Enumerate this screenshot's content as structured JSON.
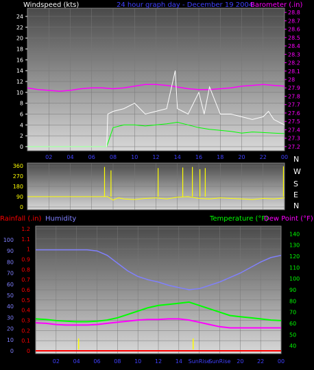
{
  "colors": {
    "white": "#ffffff",
    "magenta": "#ff00ff",
    "blue": "#4040ff",
    "yellow": "#ffff00",
    "green": "#00ff00",
    "red": "#ff0000",
    "humidity": "#8080ff"
  },
  "chart_data": [
    {
      "type": "line",
      "name": "wind-baro",
      "title": "24 hour graph day - December 19 2004",
      "left_label": "Windspeed (kts)",
      "right_label": "Barometer (.in)",
      "left_ticks": [
        "0",
        "2",
        "4",
        "6",
        "8",
        "10",
        "12",
        "14",
        "16",
        "18",
        "20",
        "22",
        "24"
      ],
      "right_ticks": [
        "27.2",
        "27.3",
        "27.4",
        "27.5",
        "27.6",
        "27.7",
        "27.8",
        "27.9",
        "28",
        "28.1",
        "28.2",
        "28.3",
        "28.4",
        "28.5",
        "28.6",
        "28.7",
        "28.8"
      ],
      "x_ticks": [
        "02",
        "04",
        "06",
        "08",
        "10",
        "12",
        "14",
        "16",
        "18",
        "20",
        "22",
        "00"
      ],
      "ylim_left": [
        0,
        25
      ],
      "ylim_right": [
        27.15,
        28.85
      ],
      "series": [
        {
          "key": "barometer",
          "axis": "right",
          "x": [
            0,
            1,
            2,
            3,
            4,
            5,
            6,
            7,
            8,
            9,
            10,
            11,
            12,
            13,
            14,
            15,
            16,
            17,
            18,
            19,
            20,
            21,
            22,
            23,
            24
          ],
          "values": [
            27.9,
            27.88,
            27.87,
            27.86,
            27.87,
            27.89,
            27.9,
            27.9,
            27.89,
            27.9,
            27.92,
            27.94,
            27.94,
            27.93,
            27.91,
            27.89,
            27.88,
            27.88,
            27.89,
            27.9,
            27.92,
            27.93,
            27.94,
            27.93,
            27.92
          ]
        },
        {
          "key": "wind_avg",
          "axis": "left",
          "x": [
            0,
            1,
            2,
            3,
            4,
            5,
            6,
            7,
            7.4,
            8,
            9,
            10,
            11,
            12,
            13,
            14,
            15,
            16,
            17,
            18,
            19,
            20,
            21,
            22,
            23,
            24
          ],
          "values": [
            0,
            0,
            0,
            0,
            0,
            0,
            0,
            0,
            0,
            3.5,
            4,
            4,
            3.8,
            4,
            4.2,
            4.5,
            4,
            3.5,
            3.2,
            3,
            2.8,
            2.5,
            2.7,
            2.6,
            2.5,
            2.4
          ]
        },
        {
          "key": "wind_gust",
          "axis": "left",
          "x": [
            0,
            7.4,
            7.5,
            8,
            9,
            10,
            11,
            12,
            13,
            13.8,
            14,
            14.5,
            15,
            16,
            16.5,
            17,
            18,
            19,
            20,
            21,
            22,
            22.5,
            23,
            24
          ],
          "values": [
            0,
            0,
            6,
            6.5,
            7,
            8,
            6,
            6.5,
            7,
            14,
            7,
            6.5,
            6,
            10,
            6,
            11,
            6,
            6,
            5.5,
            5,
            5.5,
            6.5,
            5,
            4
          ]
        }
      ]
    },
    {
      "type": "scatter",
      "name": "wind-direction",
      "left_ticks": [
        "0",
        "90",
        "180",
        "270",
        "360"
      ],
      "right_ticks": [
        "N",
        "W",
        "S",
        "E",
        "N"
      ],
      "x_ticks": [
        "02",
        "04",
        "06",
        "08",
        "10",
        "12",
        "14",
        "16",
        "18",
        "20",
        "22",
        "00"
      ],
      "ylim": [
        0,
        360
      ],
      "series": [
        {
          "key": "direction",
          "x": [
            0,
            1,
            2,
            3,
            4,
            5,
            6,
            7,
            7.5,
            8,
            8.5,
            9,
            10,
            11,
            12,
            13,
            14,
            15,
            16,
            17,
            18,
            19,
            20,
            21,
            22,
            23,
            24
          ],
          "values": [
            90,
            90,
            90,
            90,
            90,
            90,
            90,
            90,
            90,
            60,
            80,
            70,
            65,
            75,
            80,
            70,
            85,
            90,
            75,
            70,
            80,
            75,
            70,
            65,
            75,
            70,
            80
          ]
        },
        {
          "key": "spikes",
          "x": [
            7.2,
            7.8,
            12.2,
            14.5,
            15.4,
            16.1,
            16.6,
            23.9
          ],
          "values": [
            350,
            320,
            340,
            345,
            350,
            330,
            340,
            355
          ]
        }
      ]
    },
    {
      "type": "line",
      "name": "temp-humidity",
      "left_label_1": "Rainfall (.in)",
      "left_label_2": "Humidity",
      "right_label_1": "Temperature (°F)",
      "right_label_2": "Dew Point (°F)",
      "rain_ticks": [
        "0",
        "0.1",
        "0.2",
        "0.3",
        "0.4",
        "0.5",
        "0.6",
        "0.7",
        "0.8",
        "0.9",
        "1",
        "1.1",
        "1.2"
      ],
      "humidity_ticks": [
        "0",
        "10",
        "20",
        "30",
        "40",
        "50",
        "60",
        "70",
        "80",
        "90",
        "100"
      ],
      "temp_ticks": [
        "40",
        "50",
        "60",
        "70",
        "80",
        "90",
        "100",
        "110",
        "120",
        "130",
        "140"
      ],
      "x_ticks": [
        "02",
        "04",
        "06",
        "08",
        "10",
        "12",
        "14",
        "SunRise",
        "SunRise",
        "20",
        "22",
        "00"
      ],
      "ylim_humidity": [
        0,
        100
      ],
      "ylim_temp": [
        33,
        147
      ],
      "markers": [
        {
          "label": "SunRise",
          "x": 4.2
        },
        {
          "label": "SunRise",
          "x": 15.4
        }
      ],
      "series": [
        {
          "key": "humidity",
          "axis": "humidity",
          "x": [
            0,
            1,
            2,
            3,
            4,
            5,
            6,
            7,
            8,
            9,
            10,
            11,
            12,
            13,
            14,
            15,
            16,
            17,
            18,
            19,
            20,
            21,
            22,
            23,
            24
          ],
          "values": [
            91,
            91,
            91,
            91,
            91,
            91,
            90,
            86,
            79,
            72,
            67,
            64,
            62,
            59,
            57,
            55,
            56,
            59,
            62,
            66,
            70,
            75,
            80,
            84,
            86
          ]
        },
        {
          "key": "temperature",
          "axis": "temp",
          "x": [
            0,
            1,
            2,
            3,
            4,
            5,
            6,
            7,
            8,
            9,
            10,
            11,
            12,
            13,
            14,
            15,
            16,
            17,
            18,
            19,
            20,
            21,
            22,
            23,
            24
          ],
          "values": [
            64,
            63.5,
            62.5,
            62,
            61.5,
            61.5,
            62,
            63,
            65,
            68,
            71,
            74,
            76,
            77,
            78,
            79,
            76,
            73,
            70,
            67,
            66,
            65,
            64,
            63,
            62.5
          ]
        },
        {
          "key": "dewpoint",
          "axis": "temp",
          "x": [
            0,
            1,
            2,
            3,
            4,
            5,
            6,
            7,
            8,
            9,
            10,
            11,
            12,
            13,
            14,
            15,
            16,
            17,
            18,
            19,
            20,
            21,
            22,
            23,
            24
          ],
          "values": [
            60.5,
            60,
            59,
            58.5,
            58.5,
            58.5,
            59,
            60,
            61,
            62,
            63,
            63.5,
            63.5,
            64,
            64,
            63,
            61,
            59,
            57,
            56,
            56,
            56,
            56,
            56,
            56
          ]
        },
        {
          "key": "rainfall",
          "axis": "humidity",
          "x": [
            0,
            24
          ],
          "values": [
            0,
            0
          ]
        }
      ]
    }
  ]
}
